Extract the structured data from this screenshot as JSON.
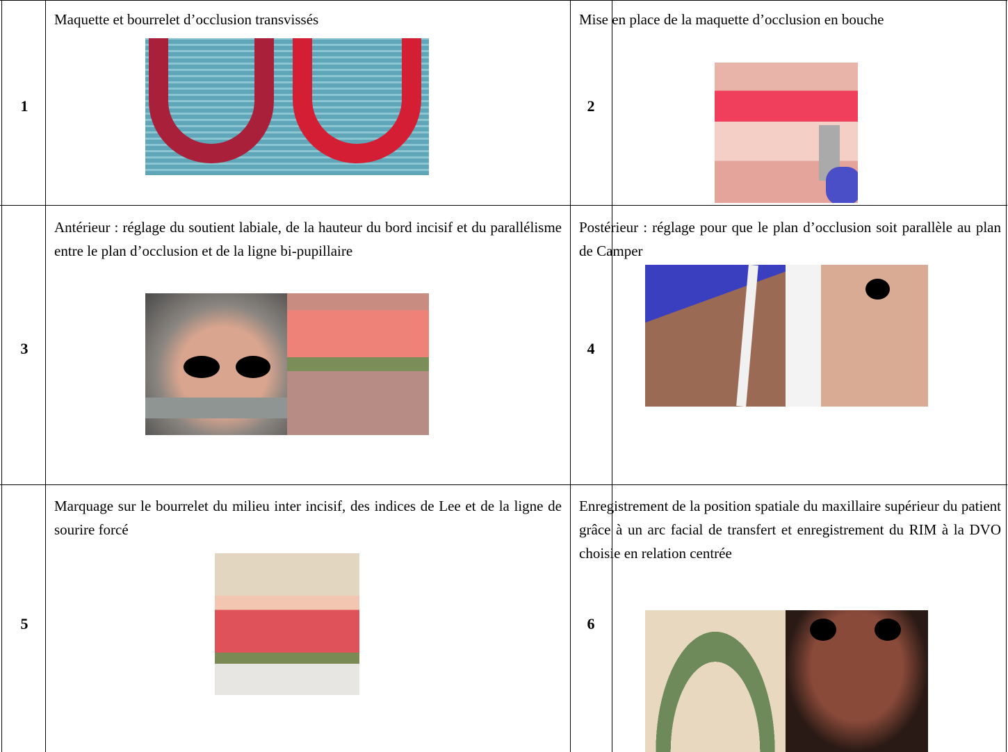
{
  "table": {
    "rows": [
      {
        "cells": [
          {
            "number": "1",
            "text": "Maquette et bourrelet d’occlusion transvissés"
          },
          {
            "number": "2",
            "text": "Mise en place de la maquette d’occlusion en bouche"
          }
        ]
      },
      {
        "cells": [
          {
            "number": "3",
            "text": "Antérieur : réglage du soutient labiale, de la hauteur du bord incisif et du parallélisme entre le plan d’occlusion et de la ligne bi-pupillaire"
          },
          {
            "number": "4",
            "text": "Postérieur : réglage pour que le plan d’occlusion soit parallèle au plan de Camper"
          }
        ]
      },
      {
        "cells": [
          {
            "number": "5",
            "text": "Marquage sur le bourrelet du milieu inter incisif, des indices de Lee et de la ligne de sourire forcé"
          },
          {
            "number": "6",
            "text": "Enregistrement de la position spatiale du maxillaire supérieur du patient grâce à un arc facial de transfert et enregistrement du RIM à la DVO choisie en relation centrée"
          }
        ]
      }
    ]
  }
}
